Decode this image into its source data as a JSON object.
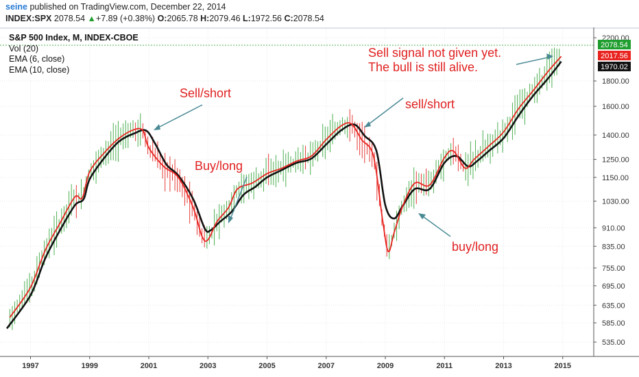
{
  "header": {
    "user": "seine",
    "published_text": "published on TradingView.com, December 22, 2014",
    "symbol": "INDEX:SPX",
    "last": "2078.54",
    "change": "+7.89 (+0.38%)",
    "open_label": "O:",
    "open": "2065.78",
    "high_label": "H:",
    "high": "2079.46",
    "low_label": "L:",
    "low": "1972.56",
    "close_label": "C:",
    "close": "2078.54"
  },
  "legend": {
    "title": "S&P 500 Index, M, INDEX-CBOE",
    "vol": "Vol (20)",
    "ema6": "EMA (6, close)",
    "ema10": "EMA (10, close)"
  },
  "colors": {
    "up": "#4caf50",
    "down": "#e53935",
    "ema6": "#e8231f",
    "ema10": "#111111",
    "arrow": "#4a8a95",
    "annotation": "#e02020"
  },
  "chart_data": {
    "type": "line",
    "title": "S&P 500 Index, M, INDEX-CBOE",
    "y_scale": "log",
    "ylim": [
      520,
      2250
    ],
    "x_range": [
      1996.2,
      2015.4
    ],
    "x_ticks": [
      "1997",
      "1999",
      "2001",
      "2003",
      "2005",
      "2007",
      "2009",
      "2011",
      "2013",
      "2015"
    ],
    "y_ticks": [
      "2200.00",
      "1800.00",
      "1600.00",
      "1400.00",
      "1250.00",
      "1150.00",
      "1030.00",
      "910.00",
      "835.00",
      "755.00",
      "695.00",
      "635.00",
      "585.00",
      "535.00"
    ],
    "price_labels": [
      {
        "text": "2078.54",
        "color": "#1f9d2e"
      },
      {
        "text": "2017.56",
        "color": "#e8231f"
      },
      {
        "text": "1970.02",
        "color": "#111111"
      }
    ],
    "series": [
      {
        "name": "EMA (6, close)",
        "x": [
          1996.3,
          1997.0,
          1997.5,
          1998.0,
          1998.5,
          1998.75,
          1999.0,
          1999.5,
          2000.0,
          2000.5,
          2000.8,
          2001.0,
          2001.5,
          2002.0,
          2002.5,
          2002.8,
          2003.0,
          2003.3,
          2003.7,
          2004.0,
          2004.5,
          2005.0,
          2005.5,
          2006.0,
          2006.5,
          2007.0,
          2007.5,
          2007.85,
          2008.2,
          2008.6,
          2008.9,
          2009.1,
          2009.3,
          2009.6,
          2010.0,
          2010.5,
          2011.0,
          2011.3,
          2011.7,
          2012.0,
          2012.5,
          2013.0,
          2013.5,
          2014.0,
          2014.5,
          2014.95
        ],
        "values": [
          600,
          690,
          820,
          930,
          1050,
          1045,
          1180,
          1290,
          1380,
          1435,
          1430,
          1320,
          1210,
          1150,
          1000,
          875,
          860,
          935,
          1000,
          1090,
          1120,
          1170,
          1200,
          1240,
          1270,
          1370,
          1460,
          1475,
          1370,
          1270,
          950,
          815,
          890,
          1010,
          1120,
          1110,
          1260,
          1300,
          1200,
          1250,
          1330,
          1420,
          1580,
          1720,
          1880,
          2018
        ]
      },
      {
        "name": "EMA (10, close)",
        "x": [
          1996.2,
          1997.0,
          1997.5,
          1998.0,
          1998.5,
          1998.8,
          1999.0,
          1999.5,
          2000.0,
          2000.5,
          2000.9,
          2001.2,
          2001.6,
          2002.0,
          2002.5,
          2002.9,
          2003.1,
          2003.4,
          2003.8,
          2004.2,
          2004.6,
          2005.0,
          2005.5,
          2006.0,
          2006.5,
          2007.0,
          2007.5,
          2007.95,
          2008.3,
          2008.7,
          2009.0,
          2009.3,
          2009.6,
          2010.0,
          2010.5,
          2011.0,
          2011.4,
          2011.8,
          2012.1,
          2012.5,
          2013.0,
          2013.5,
          2014.0,
          2014.5,
          2014.95
        ],
        "values": [
          570,
          665,
          790,
          900,
          1010,
          1040,
          1140,
          1260,
          1360,
          1410,
          1430,
          1350,
          1220,
          1160,
          1040,
          905,
          900,
          935,
          980,
          1060,
          1100,
          1150,
          1190,
          1230,
          1255,
          1340,
          1430,
          1470,
          1395,
          1300,
          1010,
          950,
          1010,
          1090,
          1090,
          1230,
          1270,
          1210,
          1240,
          1300,
          1380,
          1530,
          1680,
          1820,
          1970
        ]
      }
    ],
    "annotations": [
      "Sell/short",
      "Buy/long",
      "sell/short",
      "buy/long",
      "Sell signal not given yet.",
      "The bull is still alive."
    ]
  }
}
